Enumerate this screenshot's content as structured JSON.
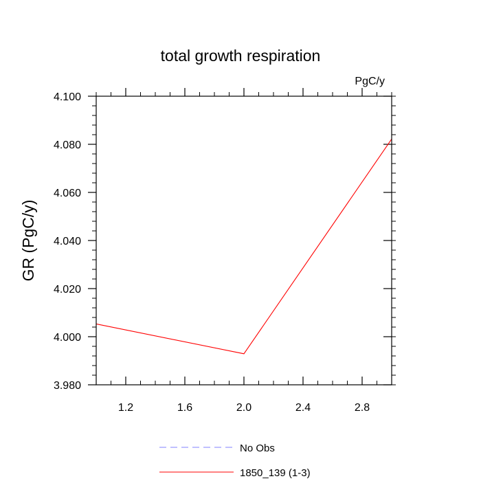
{
  "chart_data": {
    "type": "line",
    "title": "total growth respiration",
    "units_label": "PgC/y",
    "xlabel": "",
    "ylabel": "GR  (PgC/y)",
    "xlim": [
      1.0,
      3.0
    ],
    "ylim": [
      3.98,
      4.1
    ],
    "x_ticks": [
      1.2,
      1.6,
      2.0,
      2.4,
      2.8
    ],
    "x_tick_labels": [
      "1.2",
      "1.6",
      "2.0",
      "2.4",
      "2.8"
    ],
    "y_ticks": [
      3.98,
      4.0,
      4.02,
      4.04,
      4.06,
      4.08,
      4.1
    ],
    "y_tick_labels": [
      "3.980",
      "4.000",
      "4.020",
      "4.040",
      "4.060",
      "4.080",
      "4.100"
    ],
    "grid": false,
    "legend_position": "bottom",
    "series": [
      {
        "name": "No Obs",
        "color": "#8080ff",
        "dash": "dashed",
        "x": [],
        "y": []
      },
      {
        "name": "1850_139 (1-3)",
        "color": "#ff0000",
        "dash": "solid",
        "x": [
          1,
          2,
          3
        ],
        "y": [
          4.0053,
          3.9929,
          4.0822
        ]
      }
    ]
  }
}
